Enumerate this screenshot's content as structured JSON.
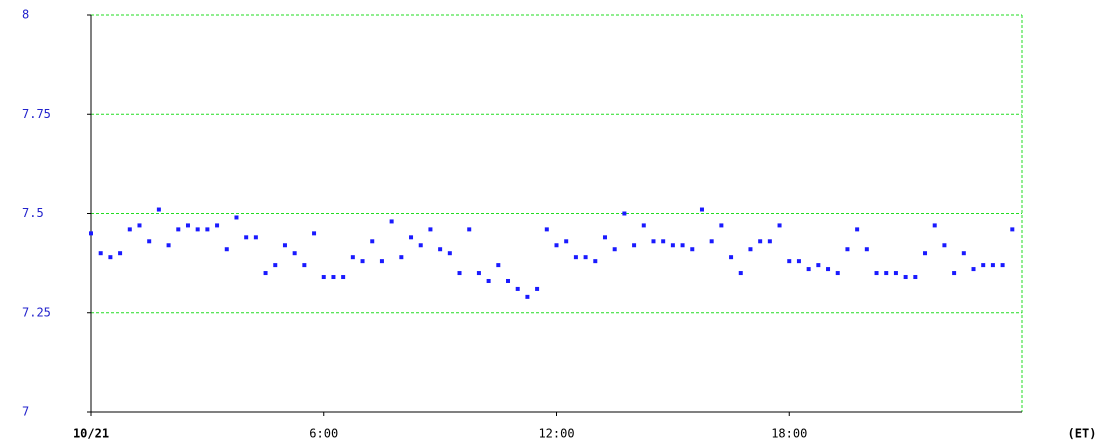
{
  "chart_data": {
    "type": "scatter",
    "x": [
      0,
      0.25,
      0.5,
      0.75,
      1,
      1.25,
      1.5,
      1.75,
      2,
      2.25,
      2.5,
      2.75,
      3,
      3.25,
      3.5,
      3.75,
      4,
      4.25,
      4.5,
      4.75,
      5,
      5.25,
      5.5,
      5.75,
      6,
      6.25,
      6.5,
      6.75,
      7,
      7.25,
      7.5,
      7.75,
      8,
      8.25,
      8.5,
      8.75,
      9,
      9.25,
      9.5,
      9.75,
      10,
      10.25,
      10.5,
      10.75,
      11,
      11.25,
      11.5,
      11.75,
      12,
      12.25,
      12.5,
      12.75,
      13,
      13.25,
      13.5,
      13.75,
      14,
      14.25,
      14.5,
      14.75,
      15,
      15.25,
      15.5,
      15.75,
      16,
      16.25,
      16.5,
      16.75,
      17,
      17.25,
      17.5,
      17.75,
      18,
      18.25,
      18.5,
      18.75,
      19,
      19.25,
      19.5,
      19.75,
      20,
      20.25,
      20.5,
      20.75,
      21,
      21.25,
      21.5,
      21.75,
      22,
      22.25,
      22.5,
      22.75,
      23,
      23.25,
      23.5,
      23.75
    ],
    "values": [
      7.45,
      7.4,
      7.39,
      7.4,
      7.46,
      7.47,
      7.43,
      7.51,
      7.42,
      7.46,
      7.47,
      7.46,
      7.46,
      7.47,
      7.41,
      7.49,
      7.44,
      7.44,
      7.35,
      7.37,
      7.42,
      7.4,
      7.37,
      7.45,
      7.34,
      7.34,
      7.34,
      7.39,
      7.38,
      7.43,
      7.38,
      7.48,
      7.39,
      7.44,
      7.42,
      7.46,
      7.41,
      7.4,
      7.35,
      7.46,
      7.35,
      7.33,
      7.37,
      7.33,
      7.31,
      7.29,
      7.31,
      7.46,
      7.42,
      7.43,
      7.39,
      7.39,
      7.38,
      7.44,
      7.41,
      7.5,
      7.42,
      7.47,
      7.43,
      7.43,
      7.42,
      7.42,
      7.41,
      7.51,
      7.43,
      7.47,
      7.39,
      7.35,
      7.41,
      7.43,
      7.43,
      7.47,
      7.38,
      7.38,
      7.36,
      7.37,
      7.36,
      7.35,
      7.41,
      7.46,
      7.41,
      7.35,
      7.35,
      7.35,
      7.34,
      7.34,
      7.4,
      7.47,
      7.42,
      7.35,
      7.4,
      7.36,
      7.37,
      7.37,
      7.37,
      7.46
    ],
    "color": "#1a1aff",
    "xlim": [
      0,
      24
    ],
    "xticks": [
      {
        "value": 0,
        "label": "10/21"
      },
      {
        "value": 6,
        "label": "6:00"
      },
      {
        "value": 12,
        "label": "12:00"
      },
      {
        "value": 18,
        "label": "18:00"
      }
    ],
    "x_label": "(ET)",
    "ylim": [
      7,
      8
    ],
    "yticks": [
      7,
      7.25,
      7.5,
      7.75,
      8
    ],
    "grid": true,
    "grid_color": "#22dd22"
  }
}
